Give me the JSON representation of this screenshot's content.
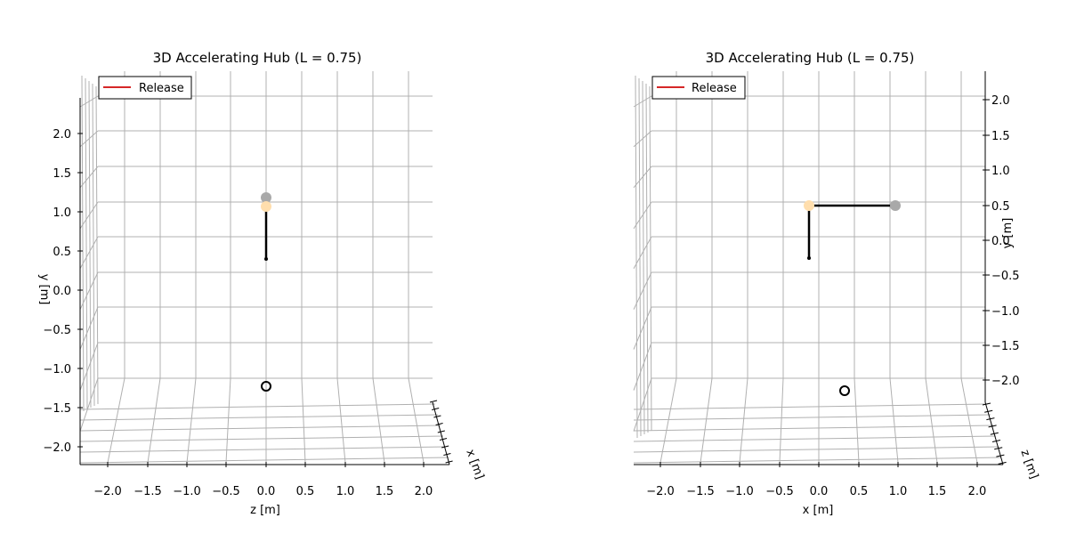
{
  "chart_data": [
    {
      "type": "scatter",
      "title": "3D Accelerating Hub (L = 0.75)",
      "xlabel": "z [m]",
      "ylabel": "y [m]",
      "depth_label": "x [m]",
      "x_ticks": [
        "−2.0",
        "−1.5",
        "−1.0",
        "−0.5",
        "0.0",
        "0.5",
        "1.0",
        "1.5",
        "2.0"
      ],
      "y_ticks": [
        "−2.0",
        "−1.5",
        "−1.0",
        "−0.5",
        "0.0",
        "0.5",
        "1.0",
        "1.5",
        "2.0"
      ],
      "legend": {
        "label": "Release",
        "color": "#d62728",
        "placement": "top-left"
      },
      "grid": true
    },
    {
      "type": "scatter",
      "title": "3D Accelerating Hub (L = 0.75)",
      "xlabel": "x [m]",
      "ylabel": "y [m]",
      "depth_label": "z [m]",
      "x_ticks": [
        "−2.0",
        "−1.5",
        "−1.0",
        "−0.5",
        "0.0",
        "0.5",
        "1.0",
        "1.5",
        "2.0"
      ],
      "y_ticks": [
        "2.0",
        "1.5",
        "1.0",
        "0.5",
        "0.0",
        "−0.5",
        "−1.0",
        "−1.5",
        "−2.0"
      ],
      "legend": {
        "label": "Release",
        "color": "#d62728",
        "placement": "top-left"
      },
      "grid": true
    }
  ]
}
